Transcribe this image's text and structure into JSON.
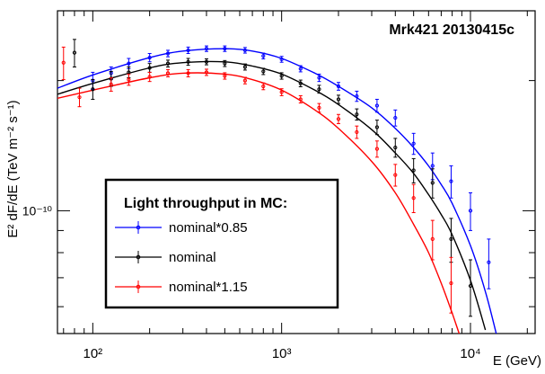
{
  "chart_data": {
    "type": "scatter",
    "title": "Mrk421 20130415c",
    "xlabel": "E (GeV)",
    "ylabel": "E² dF/dE (TeV m⁻² s⁻¹)",
    "x_scale": "log",
    "y_scale": "log",
    "xlim": [
      65,
      22000
    ],
    "ylim": [
      5.2e-11,
      2.9e-10
    ],
    "x_ticks": [
      {
        "value": 100,
        "label": "10²"
      },
      {
        "value": 1000,
        "label": "10³"
      },
      {
        "value": 10000,
        "label": "10⁴"
      }
    ],
    "y_ticks": [
      {
        "value": 1e-10,
        "label": "10⁻¹⁰"
      }
    ],
    "grid": false,
    "legend": {
      "title": "Light throughput in MC:",
      "position": "center-left",
      "entries": [
        "nominal*0.85",
        "nominal",
        "nominal*1.15"
      ]
    },
    "series": [
      {
        "name": "nominal*0.85",
        "color": "#0000ff",
        "points": [
          {
            "x": 100,
            "y": 2e-10,
            "err": 9e-12
          },
          {
            "x": 125,
            "y": 2.08e-10,
            "err": 7e-12
          },
          {
            "x": 155,
            "y": 2.19e-10,
            "err": 6e-12
          },
          {
            "x": 200,
            "y": 2.26e-10,
            "err": 5e-12
          },
          {
            "x": 250,
            "y": 2.31e-10,
            "err": 4e-12
          },
          {
            "x": 320,
            "y": 2.35e-10,
            "err": 4e-12
          },
          {
            "x": 400,
            "y": 2.37e-10,
            "err": 3.5e-12
          },
          {
            "x": 500,
            "y": 2.37e-10,
            "err": 3.5e-12
          },
          {
            "x": 640,
            "y": 2.35e-10,
            "err": 3.5e-12
          },
          {
            "x": 800,
            "y": 2.28e-10,
            "err": 3.5e-12
          },
          {
            "x": 1000,
            "y": 2.24e-10,
            "err": 3.5e-12
          },
          {
            "x": 1260,
            "y": 2.13e-10,
            "err": 3.5e-12
          },
          {
            "x": 1580,
            "y": 2.03e-10,
            "err": 4e-12
          },
          {
            "x": 2000,
            "y": 1.94e-10,
            "err": 4e-12
          },
          {
            "x": 2500,
            "y": 1.84e-10,
            "err": 5e-12
          },
          {
            "x": 3200,
            "y": 1.75e-10,
            "err": 6e-12
          },
          {
            "x": 4000,
            "y": 1.64e-10,
            "err": 7e-12
          },
          {
            "x": 5000,
            "y": 1.43e-10,
            "err": 8e-12
          },
          {
            "x": 6300,
            "y": 1.27e-10,
            "err": 9e-12
          },
          {
            "x": 7900,
            "y": 1.17e-10,
            "err": 1e-11
          },
          {
            "x": 10000,
            "y": 1e-10,
            "err": 1e-11
          },
          {
            "x": 12500,
            "y": 7.6e-11,
            "err": 1e-11
          }
        ],
        "fit": {
          "x": [
            65,
            100,
            200,
            300,
            500,
            700,
            1000,
            1500,
            2000,
            3000,
            4000,
            5000,
            6000,
            7000,
            8000,
            10000,
            12000,
            14000
          ],
          "y": [
            1.92e-10,
            2.06e-10,
            2.26e-10,
            2.34e-10,
            2.37e-10,
            2.34e-10,
            2.25e-10,
            2.08e-10,
            1.94e-10,
            1.73e-10,
            1.55e-10,
            1.4e-10,
            1.27e-10,
            1.15e-10,
            1.04e-10,
            8.3e-11,
            6.5e-11,
            5e-11
          ]
        }
      },
      {
        "name": "nominal",
        "color": "#000000",
        "points": [
          {
            "x": 80,
            "y": 2.32e-10,
            "err": 1.7e-11
          },
          {
            "x": 100,
            "y": 1.91e-10,
            "err": 1e-11
          },
          {
            "x": 125,
            "y": 2.02e-10,
            "err": 8e-12
          },
          {
            "x": 155,
            "y": 2.09e-10,
            "err": 6e-12
          },
          {
            "x": 200,
            "y": 2.14e-10,
            "err": 5e-12
          },
          {
            "x": 250,
            "y": 2.19e-10,
            "err": 4e-12
          },
          {
            "x": 320,
            "y": 2.21e-10,
            "err": 4e-12
          },
          {
            "x": 400,
            "y": 2.21e-10,
            "err": 3.5e-12
          },
          {
            "x": 500,
            "y": 2.19e-10,
            "err": 3.5e-12
          },
          {
            "x": 640,
            "y": 2.15e-10,
            "err": 3.5e-12
          },
          {
            "x": 800,
            "y": 2.1e-10,
            "err": 3.5e-12
          },
          {
            "x": 1000,
            "y": 2.05e-10,
            "err": 3.5e-12
          },
          {
            "x": 1260,
            "y": 1.97e-10,
            "err": 3.5e-12
          },
          {
            "x": 1580,
            "y": 1.91e-10,
            "err": 4e-12
          },
          {
            "x": 2000,
            "y": 1.81e-10,
            "err": 4e-12
          },
          {
            "x": 2500,
            "y": 1.67e-10,
            "err": 5e-12
          },
          {
            "x": 3200,
            "y": 1.56e-10,
            "err": 6e-12
          },
          {
            "x": 4000,
            "y": 1.4e-10,
            "err": 7e-12
          },
          {
            "x": 5000,
            "y": 1.24e-10,
            "err": 8e-12
          },
          {
            "x": 6300,
            "y": 1.16e-10,
            "err": 9e-12
          },
          {
            "x": 7900,
            "y": 8.6e-11,
            "err": 1e-11
          },
          {
            "x": 10000,
            "y": 6.7e-11,
            "err": 1e-11
          }
        ],
        "fit": {
          "x": [
            65,
            100,
            200,
            300,
            500,
            700,
            1000,
            1500,
            2000,
            3000,
            4000,
            5000,
            6000,
            7000,
            8000,
            10000,
            12000
          ],
          "y": [
            1.86e-10,
            1.97e-10,
            2.14e-10,
            2.2e-10,
            2.21e-10,
            2.16e-10,
            2.07e-10,
            1.9e-10,
            1.76e-10,
            1.54e-10,
            1.36e-10,
            1.22e-10,
            1.09e-10,
            9.8e-11,
            8.8e-11,
            6.9e-11,
            5.3e-11
          ]
        }
      },
      {
        "name": "nominal*1.15",
        "color": "#ff0000",
        "points": [
          {
            "x": 70,
            "y": 2.2e-10,
            "err": 1.9e-11
          },
          {
            "x": 85,
            "y": 1.83e-10,
            "err": 9e-12
          },
          {
            "x": 125,
            "y": 1.96e-10,
            "err": 7e-12
          },
          {
            "x": 155,
            "y": 2.01e-10,
            "err": 6e-12
          },
          {
            "x": 200,
            "y": 2.04e-10,
            "err": 5e-12
          },
          {
            "x": 250,
            "y": 2.08e-10,
            "err": 4e-12
          },
          {
            "x": 320,
            "y": 2.08e-10,
            "err": 4e-12
          },
          {
            "x": 400,
            "y": 2.09e-10,
            "err": 3.5e-12
          },
          {
            "x": 500,
            "y": 2.05e-10,
            "err": 3.5e-12
          },
          {
            "x": 640,
            "y": 2e-10,
            "err": 3.5e-12
          },
          {
            "x": 800,
            "y": 1.94e-10,
            "err": 3.5e-12
          },
          {
            "x": 1000,
            "y": 1.88e-10,
            "err": 3.5e-12
          },
          {
            "x": 1260,
            "y": 1.81e-10,
            "err": 3.5e-12
          },
          {
            "x": 1580,
            "y": 1.73e-10,
            "err": 4e-12
          },
          {
            "x": 2000,
            "y": 1.63e-10,
            "err": 4e-12
          },
          {
            "x": 2500,
            "y": 1.52e-10,
            "err": 5e-12
          },
          {
            "x": 3200,
            "y": 1.39e-10,
            "err": 6e-12
          },
          {
            "x": 4000,
            "y": 1.21e-10,
            "err": 7e-12
          },
          {
            "x": 5000,
            "y": 1.07e-10,
            "err": 8e-12
          },
          {
            "x": 6300,
            "y": 8.6e-11,
            "err": 9e-12
          },
          {
            "x": 7900,
            "y": 6.8e-11,
            "err": 1e-11
          }
        ],
        "fit": {
          "x": [
            65,
            100,
            200,
            300,
            500,
            700,
            1000,
            1500,
            2000,
            3000,
            4000,
            5000,
            6000,
            7000,
            8000,
            9000,
            10000
          ],
          "y": [
            1.82e-10,
            1.9e-10,
            2.03e-10,
            2.08e-10,
            2.07e-10,
            2.01e-10,
            1.9e-10,
            1.71e-10,
            1.55e-10,
            1.3e-10,
            1.1e-10,
            9.3e-11,
            8e-11,
            6.8e-11,
            5.8e-11,
            5e-11,
            4.5e-11
          ]
        }
      }
    ]
  }
}
